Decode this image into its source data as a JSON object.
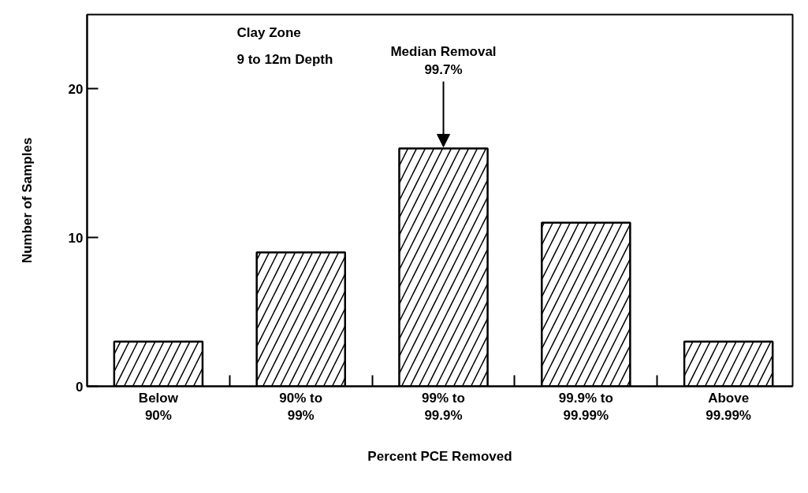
{
  "chart_data": {
    "type": "bar",
    "xlabel": "Percent PCE Removed",
    "ylabel": "Number of Samples",
    "categories": [
      "Below\n90%",
      "90% to\n99%",
      "99% to\n99.9%",
      "99.9% to\n99.99%",
      "Above\n99.99%"
    ],
    "values": [
      3,
      9,
      16,
      11,
      3
    ],
    "color": "#000000",
    "ylim": [
      0,
      25
    ],
    "yticks": [
      0,
      10,
      20
    ],
    "grid": false,
    "annotations": [
      "Clay Zone",
      "9 to 12m Depth",
      {
        "text": "Median Removal\n99.7%",
        "x": "99% to\n99.9%",
        "y": 16
      }
    ]
  }
}
